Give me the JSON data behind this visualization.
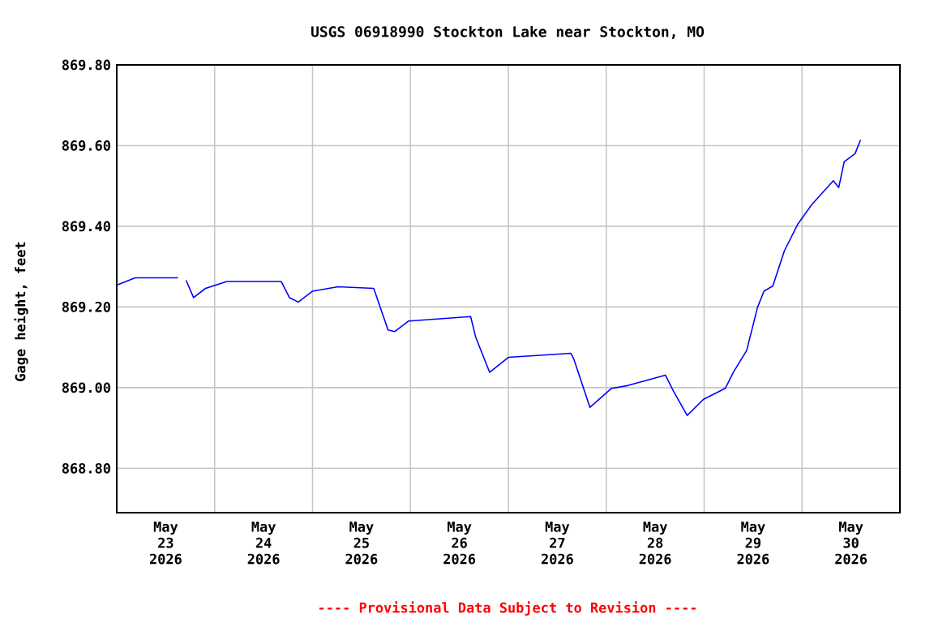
{
  "chart_data": {
    "type": "line",
    "title": "USGS 06918990 Stockton Lake near Stockton, MO",
    "ylabel": "Gage height, feet",
    "x": [
      "2026-05-23T00:15",
      "2026-05-23T04:30",
      "2026-05-23T15:00",
      "2026-05-23T16:00",
      "2026-05-23T17:00",
      "2026-05-23T18:50",
      "2026-05-23T21:45",
      "2026-05-24T03:00",
      "2026-05-24T16:20",
      "2026-05-24T18:20",
      "2026-05-24T20:30",
      "2026-05-25T00:00",
      "2026-05-25T06:15",
      "2026-05-25T15:00",
      "2026-05-25T18:30",
      "2026-05-25T20:10",
      "2026-05-25T23:30",
      "2026-05-26T14:45",
      "2026-05-26T16:00",
      "2026-05-26T19:25",
      "2026-05-27T00:00",
      "2026-05-27T15:20",
      "2026-05-27T16:00",
      "2026-05-27T20:00",
      "2026-05-28T01:15",
      "2026-05-28T05:15",
      "2026-05-28T14:30",
      "2026-05-28T16:30",
      "2026-05-28T19:50",
      "2026-05-28T23:50",
      "2026-05-29T05:10",
      "2026-05-29T07:10",
      "2026-05-29T10:25",
      "2026-05-29T13:05",
      "2026-05-29T14:40",
      "2026-05-29T16:50",
      "2026-05-29T19:40",
      "2026-05-29T23:00",
      "2026-05-30T02:20",
      "2026-05-30T07:40",
      "2026-05-30T09:00",
      "2026-05-30T10:20",
      "2026-05-30T13:00",
      "2026-05-30T14:20"
    ],
    "series": [
      {
        "color": "#0000ff",
        "values": [
          869.255,
          869.272,
          869.272,
          null,
          869.266,
          869.223,
          869.246,
          869.263,
          869.263,
          869.223,
          869.212,
          869.239,
          869.25,
          869.246,
          869.143,
          869.139,
          869.165,
          869.176,
          869.125,
          869.038,
          869.075,
          869.085,
          869.072,
          868.951,
          868.998,
          869.005,
          869.031,
          868.991,
          868.931,
          868.971,
          868.998,
          869.038,
          869.092,
          869.199,
          869.239,
          869.252,
          869.339,
          869.406,
          869.453,
          869.513,
          869.496,
          869.56,
          869.58,
          869.614
        ]
      }
    ],
    "xlim": [
      "2026-05-23T00:00",
      "2026-05-31T00:00"
    ],
    "xticks": [
      {
        "value": "2026-05-23T12:00",
        "label": "May 23 2026"
      },
      {
        "value": "2026-05-24T12:00",
        "label": "May 24 2026"
      },
      {
        "value": "2026-05-25T12:00",
        "label": "May 25 2026"
      },
      {
        "value": "2026-05-26T12:00",
        "label": "May 26 2026"
      },
      {
        "value": "2026-05-27T12:00",
        "label": "May 27 2026"
      },
      {
        "value": "2026-05-28T12:00",
        "label": "May 28 2026"
      },
      {
        "value": "2026-05-29T12:00",
        "label": "May 29 2026"
      },
      {
        "value": "2026-05-30T12:00",
        "label": "May 30 2026"
      },
      {
        "value": "2026-05-24T00:00",
        "label": null
      },
      {
        "value": "2026-05-25T00:00",
        "label": null
      },
      {
        "value": "2026-05-26T00:00",
        "label": null
      },
      {
        "value": "2026-05-27T00:00",
        "label": null
      },
      {
        "value": "2026-05-28T00:00",
        "label": null
      },
      {
        "value": "2026-05-29T00:00",
        "label": null
      },
      {
        "value": "2026-05-30T00:00",
        "label": null
      }
    ],
    "ylim": [
      868.69,
      869.8
    ],
    "yticks": [
      {
        "value": 868.8,
        "label": "868.80"
      },
      {
        "value": 869.0,
        "label": "869.00"
      },
      {
        "value": 869.2,
        "label": "869.20"
      },
      {
        "value": 869.4,
        "label": "869.40"
      },
      {
        "value": 869.6,
        "label": "869.60"
      },
      {
        "value": 869.8,
        "label": "869.80"
      }
    ],
    "grid": true,
    "marker": "none",
    "line_style": "solid",
    "annotations": [
      "---- Provisional Data Subject to Revision ----"
    ]
  }
}
